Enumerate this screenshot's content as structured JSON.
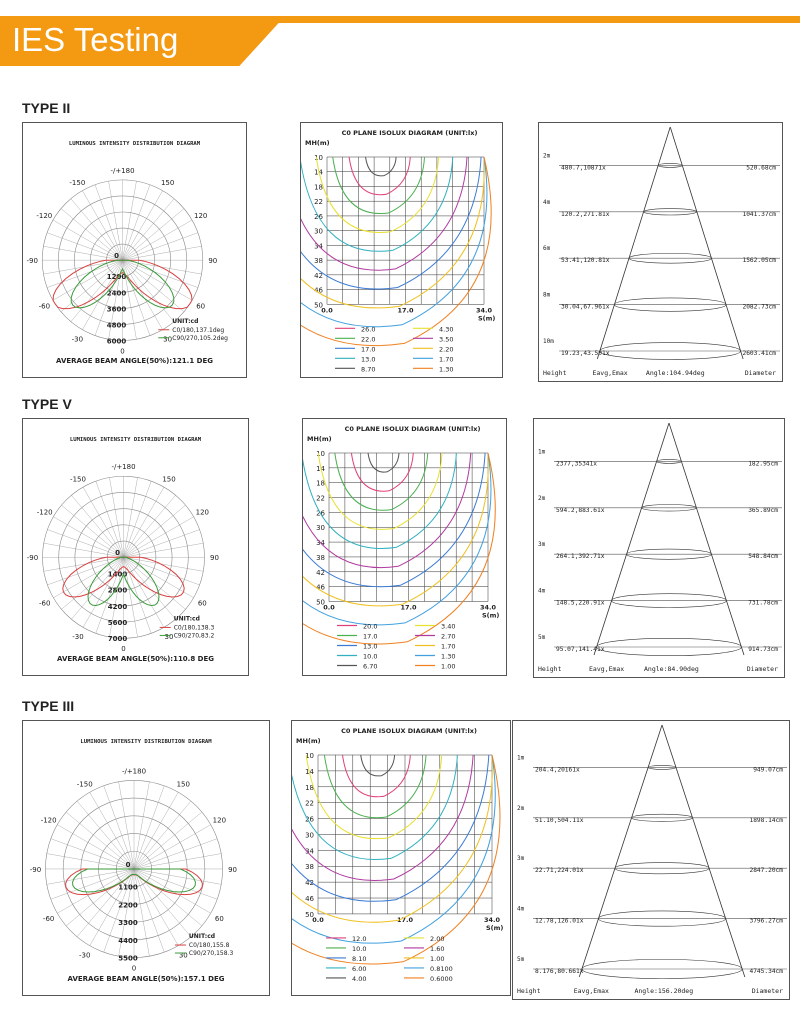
{
  "header": {
    "title": "IES Testing",
    "accent": "#f39a12"
  },
  "sections": [
    {
      "label": "TYPE II",
      "polar": {
        "title": "LUMINOUS INTENSITY DISTRIBUTION DIAGRAM",
        "angles": [
          "-/+180",
          "-150",
          "150",
          "-120",
          "120",
          "-90",
          "90",
          "-60",
          "60",
          "-30",
          "30",
          "0"
        ],
        "rings": [
          "0",
          "1200",
          "2400",
          "3600",
          "4800",
          "6000"
        ],
        "unit": "UNIT:cd",
        "legend": [
          "C0/180,137.1deg",
          "C90/270,105.2deg"
        ],
        "beam": "AVERAGE BEAM ANGLE(50%):121.1 DEG"
      },
      "isolux": {
        "title": "C0 PLANE ISOLUX DIAGRAM (UNIT:lx)",
        "mh": "MH(m)",
        "s": "S(m)",
        "yticks": [
          "10",
          "14",
          "18",
          "22",
          "26",
          "30",
          "34",
          "38",
          "42",
          "46",
          "50"
        ],
        "xticks": [
          "0.0",
          "17.0",
          "34.0"
        ],
        "legend": [
          {
            "value": "26.0",
            "color": "#e0407a"
          },
          {
            "value": "4.30",
            "color": "#e8e030"
          },
          {
            "value": "22.0",
            "color": "#4caf50"
          },
          {
            "value": "3.50",
            "color": "#b03aa0"
          },
          {
            "value": "17.0",
            "color": "#3a7bd5"
          },
          {
            "value": "2.20",
            "color": "#f0c020"
          },
          {
            "value": "13.0",
            "color": "#30b0c0"
          },
          {
            "value": "1.70",
            "color": "#40a0e0"
          },
          {
            "value": "8.70",
            "color": "#555555"
          },
          {
            "value": "1.30",
            "color": "#f08020"
          }
        ]
      },
      "cone": {
        "rows": [
          {
            "h": "2m",
            "e": "480.7,10871x",
            "d": "520.68cm"
          },
          {
            "h": "4m",
            "e": "120.2,271.81x",
            "d": "1041.37cm"
          },
          {
            "h": "6m",
            "e": "53.41,120.81x",
            "d": "1562.05cm"
          },
          {
            "h": "8m",
            "e": "30.04,67.961x",
            "d": "2082.73cm"
          },
          {
            "h": "10m",
            "e": "19.23,43.501x",
            "d": "2603.41cm"
          }
        ],
        "footer": {
          "height": "Height",
          "eavg": "Eavg,Emax",
          "angle": "Angle:104.94deg",
          "diameter": "Diameter"
        }
      }
    },
    {
      "label": "TYPE V",
      "polar": {
        "title": "LUMINOUS INTENSITY DISTRIBUTION DIAGRAM",
        "angles": [
          "-/+180",
          "-150",
          "150",
          "-120",
          "120",
          "-90",
          "90",
          "-60",
          "60",
          "-30",
          "30",
          "0"
        ],
        "rings": [
          "0",
          "1400",
          "2800",
          "4200",
          "5600",
          "7000"
        ],
        "unit": "UNIT:cd",
        "legend": [
          "C0/180,138.3",
          "C90/270,83.2"
        ],
        "beam": "AVERAGE BEAM ANGLE(50%):110.8 DEG"
      },
      "isolux": {
        "title": "C0 PLANE ISOLUX DIAGRAM (UNIT:lx)",
        "mh": "MH(m)",
        "s": "S(m)",
        "yticks": [
          "10",
          "14",
          "18",
          "22",
          "26",
          "30",
          "34",
          "38",
          "42",
          "46",
          "50"
        ],
        "xticks": [
          "0.0",
          "17.0",
          "34.0"
        ],
        "legend": [
          {
            "value": "20.0",
            "color": "#e0407a"
          },
          {
            "value": "3.40",
            "color": "#e8e030"
          },
          {
            "value": "17.0",
            "color": "#4caf50"
          },
          {
            "value": "2.70",
            "color": "#b03aa0"
          },
          {
            "value": "13.0",
            "color": "#3a7bd5"
          },
          {
            "value": "1.70",
            "color": "#f0c020"
          },
          {
            "value": "10.0",
            "color": "#30b0c0"
          },
          {
            "value": "1.30",
            "color": "#40a0e0"
          },
          {
            "value": "6.70",
            "color": "#555555"
          },
          {
            "value": "1.00",
            "color": "#f08020"
          }
        ]
      },
      "cone": {
        "rows": [
          {
            "h": "1m",
            "e": "2377,35341x",
            "d": "182.95cm"
          },
          {
            "h": "2m",
            "e": "594.2,883.61x",
            "d": "365.89cm"
          },
          {
            "h": "3m",
            "e": "264.1,392.71x",
            "d": "548.84cm"
          },
          {
            "h": "4m",
            "e": "148.5,220.91x",
            "d": "731.78cm"
          },
          {
            "h": "5m",
            "e": "95.07,141.41x",
            "d": "914.73cm"
          }
        ],
        "footer": {
          "height": "Height",
          "eavg": "Eavg,Emax",
          "angle": "Angle:84.90deg",
          "diameter": "Diameter"
        }
      }
    },
    {
      "label": "TYPE III",
      "polar": {
        "title": "LUMINOUS INTENSITY DISTRIBUTION DIAGRAM",
        "angles": [
          "-/+180",
          "-150",
          "150",
          "-120",
          "120",
          "-90",
          "90",
          "-60",
          "60",
          "-30",
          "30",
          "0"
        ],
        "rings": [
          "0",
          "1100",
          "2200",
          "3300",
          "4400",
          "5500"
        ],
        "unit": "UNIT:cd",
        "legend": [
          "C0/180,155.8",
          "C90/270,158.3"
        ],
        "beam": "AVERAGE BEAM ANGLE(50%):157.1 DEG"
      },
      "isolux": {
        "title": "C0 PLANE ISOLUX DIAGRAM (UNIT:lx)",
        "mh": "MH(m)",
        "s": "S(m)",
        "yticks": [
          "10",
          "14",
          "18",
          "22",
          "26",
          "30",
          "34",
          "38",
          "42",
          "46",
          "50"
        ],
        "xticks": [
          "0.0",
          "17.0",
          "34.0"
        ],
        "legend": [
          {
            "value": "12.0",
            "color": "#e0407a"
          },
          {
            "value": "2.00",
            "color": "#e8e030"
          },
          {
            "value": "10.0",
            "color": "#4caf50"
          },
          {
            "value": "1.60",
            "color": "#b03aa0"
          },
          {
            "value": "8.10",
            "color": "#3a7bd5"
          },
          {
            "value": "1.00",
            "color": "#f0c020"
          },
          {
            "value": "6.00",
            "color": "#30b0c0"
          },
          {
            "value": "0.8100",
            "color": "#40a0e0"
          },
          {
            "value": "4.00",
            "color": "#555555"
          },
          {
            "value": "0.6000",
            "color": "#f08020"
          }
        ]
      },
      "cone": {
        "rows": [
          {
            "h": "1m",
            "e": "204.4,20161x",
            "d": "949.07cm"
          },
          {
            "h": "2m",
            "e": "51.10,504.11x",
            "d": "1898.14cm"
          },
          {
            "h": "3m",
            "e": "22.71,224.01x",
            "d": "2847.20cm"
          },
          {
            "h": "4m",
            "e": "12.78,126.01x",
            "d": "3796.27cm"
          },
          {
            "h": "5m",
            "e": "8.176,80.661x",
            "d": "4745.34cm"
          }
        ],
        "footer": {
          "height": "Height",
          "eavg": "Eavg,Emax",
          "angle": "Angle:156.20deg",
          "diameter": "Diameter"
        }
      }
    }
  ]
}
